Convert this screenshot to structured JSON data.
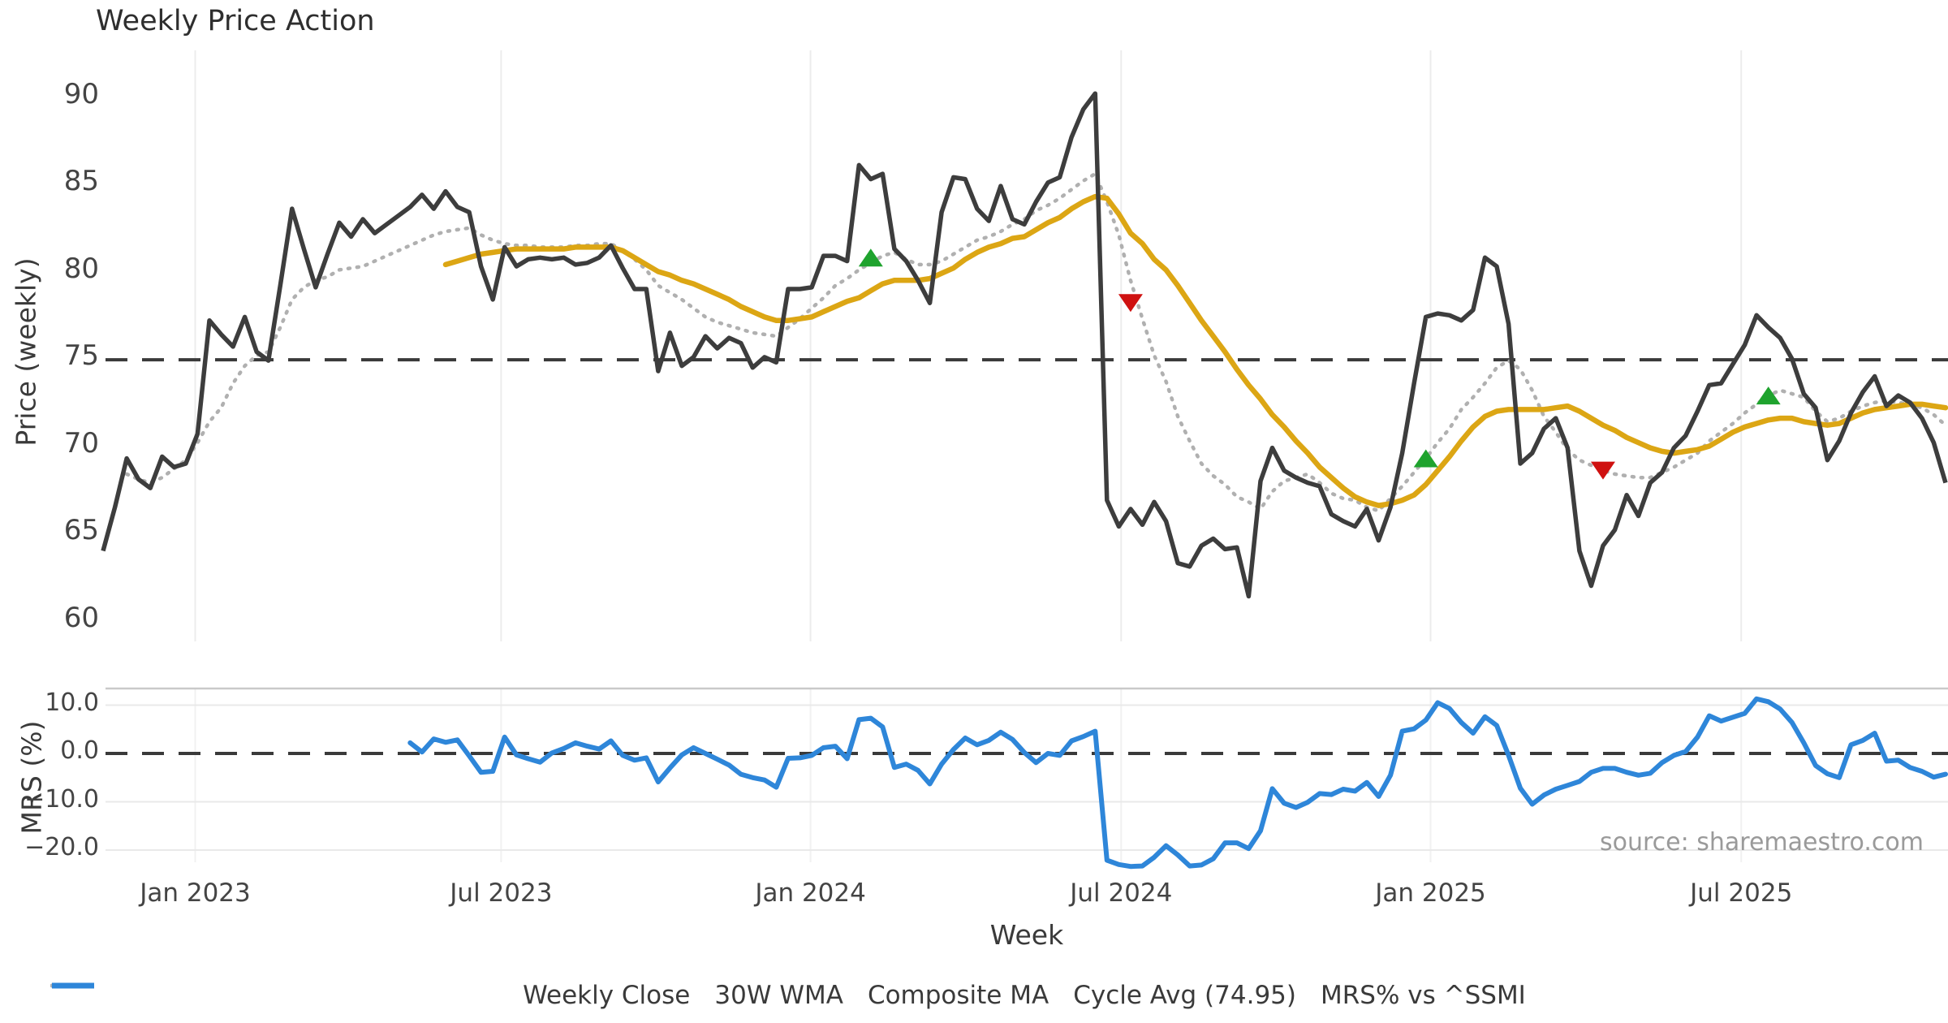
{
  "title": "Weekly Price Action",
  "source_note": "source: sharemaestro.com",
  "colors": {
    "close": "#3d3d3d",
    "wma": "#dca614",
    "composite": "#b0b0b0",
    "cycle_avg": "#3a3a3a",
    "mrs": "#2e86d9",
    "marker_up": "#1fa32e",
    "marker_down": "#cf1110",
    "grid": "#ececec",
    "grid_faint": "#f1f1f1",
    "panel_border": "#c9c9c9"
  },
  "price_axis": {
    "label": "Price (weekly)",
    "ticks": [
      90,
      85,
      80,
      75,
      70,
      65,
      60
    ]
  },
  "mrs_axis": {
    "label": "MRS (%)",
    "ticks": [
      {
        "label": "10.0",
        "value": 10
      },
      {
        "label": "0.0",
        "value": 0
      },
      {
        "label": "−10.0",
        "value": -10
      },
      {
        "label": "−20.0",
        "value": -20
      }
    ]
  },
  "x_axis": {
    "label": "Week",
    "ticks": [
      {
        "label": "Jan 2023",
        "week": 7.8
      },
      {
        "label": "Jul 2023",
        "week": 33.7
      },
      {
        "label": "Jan 2024",
        "week": 59.9
      },
      {
        "label": "Jul 2024",
        "week": 86.2
      },
      {
        "label": "Jan 2025",
        "week": 112.4
      },
      {
        "label": "Jul 2025",
        "week": 138.7
      }
    ]
  },
  "legend": [
    {
      "label": "Weekly Close",
      "style": "solid",
      "color": "#3d3d3d",
      "width": 6
    },
    {
      "label": "30W WMA",
      "style": "solid",
      "color": "#dca614",
      "width": 7
    },
    {
      "label": "Composite MA",
      "style": "dotted",
      "color": "#b0b0b0",
      "width": 5
    },
    {
      "label": "Cycle Avg (74.95)",
      "style": "dashed",
      "color": "#3a3a3a",
      "width": 4
    },
    {
      "label": "MRS% vs ^SSMI",
      "style": "solid",
      "color": "#2e86d9",
      "width": 7
    }
  ],
  "chart_data": [
    {
      "panel": "price",
      "type": "line",
      "ylabel": "Price (weekly)",
      "ylim": [
        59,
        91
      ],
      "grid": "vertical-only",
      "cycle_avg": 74.95,
      "series": [
        {
          "name": "Weekly Close",
          "start_week": 0,
          "values": [
            64.0,
            66.5,
            69.3,
            68.1,
            67.6,
            69.4,
            68.8,
            69.0,
            70.7,
            77.2,
            76.4,
            75.7,
            77.4,
            75.4,
            74.9,
            79.2,
            83.6,
            81.3,
            79.1,
            81.0,
            82.8,
            82.0,
            83.0,
            82.2,
            82.7,
            83.2,
            83.7,
            84.4,
            83.6,
            84.6,
            83.7,
            83.4,
            80.3,
            78.4,
            81.4,
            80.3,
            80.7,
            80.8,
            80.7,
            80.8,
            80.4,
            80.5,
            80.8,
            81.5,
            80.2,
            79.0,
            79.0,
            74.3,
            76.5,
            74.6,
            75.1,
            76.3,
            75.6,
            76.2,
            75.9,
            74.5,
            75.1,
            74.8,
            79.0,
            79.0,
            79.1,
            80.9,
            80.9,
            80.6,
            86.1,
            85.3,
            85.6,
            81.3,
            80.6,
            79.5,
            78.2,
            83.4,
            85.4,
            85.3,
            83.6,
            82.9,
            84.9,
            83.0,
            82.7,
            84.0,
            85.1,
            85.4,
            87.7,
            89.3,
            90.2,
            66.9,
            65.4,
            66.4,
            65.5,
            66.8,
            65.7,
            63.3,
            63.1,
            64.3,
            64.7,
            64.1,
            64.2,
            61.4,
            68.0,
            69.9,
            68.6,
            68.2,
            67.9,
            67.7,
            66.1,
            65.7,
            65.4,
            66.4,
            64.6,
            66.5,
            69.6,
            73.6,
            77.4,
            77.6,
            77.5,
            77.2,
            77.8,
            80.8,
            80.3,
            77.0,
            69.0,
            69.6,
            71.0,
            71.6,
            69.9,
            64.0,
            62.0,
            64.3,
            65.2,
            67.2,
            66.0,
            67.9,
            68.5,
            69.9,
            70.6,
            72.0,
            73.5,
            73.6,
            74.7,
            75.8,
            77.5,
            76.8,
            76.2,
            75.0,
            73.0,
            72.2,
            69.2,
            70.3,
            71.9,
            73.1,
            74.0,
            72.3,
            72.9,
            72.5,
            71.6,
            70.2,
            67.9
          ]
        },
        {
          "name": "30W WMA",
          "start_week": 29,
          "values": [
            80.4,
            80.6,
            80.8,
            81.0,
            81.1,
            81.2,
            81.3,
            81.3,
            81.3,
            81.3,
            81.3,
            81.4,
            81.4,
            81.4,
            81.4,
            81.2,
            80.8,
            80.4,
            80.0,
            79.8,
            79.5,
            79.3,
            79.0,
            78.7,
            78.4,
            78.0,
            77.7,
            77.4,
            77.2,
            77.2,
            77.3,
            77.4,
            77.7,
            78.0,
            78.3,
            78.5,
            78.9,
            79.3,
            79.5,
            79.5,
            79.5,
            79.6,
            79.9,
            80.2,
            80.7,
            81.1,
            81.4,
            81.6,
            81.9,
            82.0,
            82.4,
            82.8,
            83.1,
            83.6,
            84.0,
            84.3,
            84.2,
            83.3,
            82.2,
            81.6,
            80.7,
            80.1,
            79.2,
            78.2,
            77.2,
            76.3,
            75.4,
            74.4,
            73.5,
            72.7,
            71.8,
            71.1,
            70.3,
            69.6,
            68.8,
            68.2,
            67.6,
            67.1,
            66.8,
            66.6,
            66.7,
            66.9,
            67.2,
            67.8,
            68.6,
            69.4,
            70.3,
            71.1,
            71.7,
            72.0,
            72.1,
            72.1,
            72.1,
            72.1,
            72.2,
            72.3,
            72.0,
            71.6,
            71.2,
            70.9,
            70.5,
            70.2,
            69.9,
            69.7,
            69.6,
            69.7,
            69.8,
            70.0,
            70.4,
            70.8,
            71.1,
            71.3,
            71.5,
            71.6,
            71.6,
            71.4,
            71.3,
            71.2,
            71.3,
            71.6,
            71.9,
            72.1,
            72.2,
            72.3,
            72.4,
            72.4,
            72.3,
            72.2
          ]
        },
        {
          "name": "Composite MA",
          "start_week": 2,
          "values": [
            68.4,
            68.1,
            67.9,
            68.2,
            68.7,
            69.2,
            70.2,
            71.4,
            72.2,
            73.6,
            74.6,
            75.2,
            75.4,
            76.8,
            78.4,
            79.1,
            79.5,
            79.7,
            80.1,
            80.2,
            80.3,
            80.6,
            80.9,
            81.2,
            81.5,
            81.8,
            82.1,
            82.3,
            82.4,
            82.5,
            82.1,
            81.8,
            81.6,
            81.5,
            81.5,
            81.4,
            81.4,
            81.4,
            81.5,
            81.5,
            81.6,
            81.6,
            81.2,
            80.7,
            80.1,
            79.2,
            78.8,
            78.4,
            77.9,
            77.4,
            77.1,
            76.9,
            76.7,
            76.5,
            76.4,
            76.3,
            76.8,
            77.3,
            77.9,
            78.5,
            79.2,
            79.6,
            80.1,
            80.5,
            80.9,
            81.1,
            80.7,
            80.4,
            80.4,
            80.6,
            81.0,
            81.4,
            81.8,
            82.0,
            82.3,
            82.7,
            83.0,
            83.5,
            83.8,
            84.2,
            84.7,
            85.2,
            85.6,
            84.0,
            82.1,
            79.5,
            77.3,
            75.2,
            73.7,
            71.7,
            70.3,
            69.0,
            68.3,
            67.8,
            67.1,
            66.8,
            66.4,
            67.4,
            68.0,
            68.2,
            68.4,
            67.9,
            67.3,
            67.0,
            66.9,
            66.5,
            66.3,
            67.0,
            67.7,
            68.5,
            69.3,
            70.2,
            71.0,
            72.1,
            72.8,
            73.6,
            74.5,
            74.9,
            74.4,
            73.2,
            71.7,
            70.8,
            69.8,
            69.2,
            68.9,
            68.6,
            68.4,
            68.3,
            68.2,
            68.2,
            68.5,
            68.8,
            69.2,
            69.6,
            70.3,
            70.8,
            71.3,
            71.9,
            72.4,
            72.9,
            73.2,
            73.0,
            72.8,
            72.0,
            71.4,
            71.6,
            72.0,
            72.3,
            72.5,
            72.6,
            72.5,
            72.4,
            72.2,
            71.8,
            71.2
          ]
        }
      ],
      "markers": [
        {
          "week": 65,
          "value": 80.8,
          "dir": "up"
        },
        {
          "week": 87,
          "value": 78.2,
          "dir": "down"
        },
        {
          "week": 112,
          "value": 69.3,
          "dir": "up"
        },
        {
          "week": 127,
          "value": 68.6,
          "dir": "down"
        },
        {
          "week": 141,
          "value": 72.9,
          "dir": "up"
        }
      ]
    },
    {
      "panel": "mrs",
      "type": "line",
      "ylabel": "MRS (%)",
      "ylim": [
        -26,
        13.5
      ],
      "zero_line": 0,
      "grid": "horizontal",
      "series": [
        {
          "name": "MRS% vs ^SSMI",
          "start_week": 26,
          "values": [
            2.2,
            0.3,
            3.0,
            2.3,
            2.8,
            -0.5,
            -3.9,
            -3.7,
            3.4,
            -0.3,
            -1.1,
            -1.8,
            0.1,
            1.0,
            2.2,
            1.5,
            0.9,
            2.6,
            -0.4,
            -1.4,
            -0.9,
            -5.9,
            -3.0,
            -0.3,
            1.2,
            0.0,
            -1.2,
            -2.4,
            -4.3,
            -5.0,
            -5.5,
            -7.0,
            -1.0,
            -0.9,
            -0.4,
            1.2,
            1.5,
            -1.1,
            7.0,
            7.3,
            5.5,
            -2.9,
            -2.2,
            -3.5,
            -6.3,
            -2.2,
            0.8,
            3.2,
            1.8,
            2.7,
            4.4,
            2.9,
            0.2,
            -1.9,
            0.0,
            -0.4,
            2.6,
            3.5,
            4.6,
            -22.1,
            -23.0,
            -23.4,
            -23.3,
            -21.5,
            -19.1,
            -21.0,
            -23.3,
            -23.1,
            -21.8,
            -18.5,
            -18.5,
            -19.7,
            -16.0,
            -7.3,
            -10.3,
            -11.2,
            -10.1,
            -8.3,
            -8.5,
            -7.4,
            -7.8,
            -6.0,
            -8.9,
            -4.5,
            4.6,
            5.1,
            6.9,
            10.5,
            9.3,
            6.4,
            4.2,
            7.6,
            5.8,
            -0.4,
            -7.2,
            -10.5,
            -8.6,
            -7.4,
            -6.6,
            -5.8,
            -3.9,
            -3.1,
            -3.1,
            -3.9,
            -4.5,
            -4.1,
            -1.9,
            -0.4,
            0.4,
            3.4,
            7.8,
            6.7,
            7.5,
            8.3,
            11.3,
            10.7,
            9.2,
            6.4,
            2.2,
            -2.5,
            -4.2,
            -5.0,
            1.8,
            2.7,
            4.2,
            -1.6,
            -1.4,
            -2.9,
            -3.7,
            -4.9,
            -4.3
          ]
        }
      ]
    }
  ]
}
